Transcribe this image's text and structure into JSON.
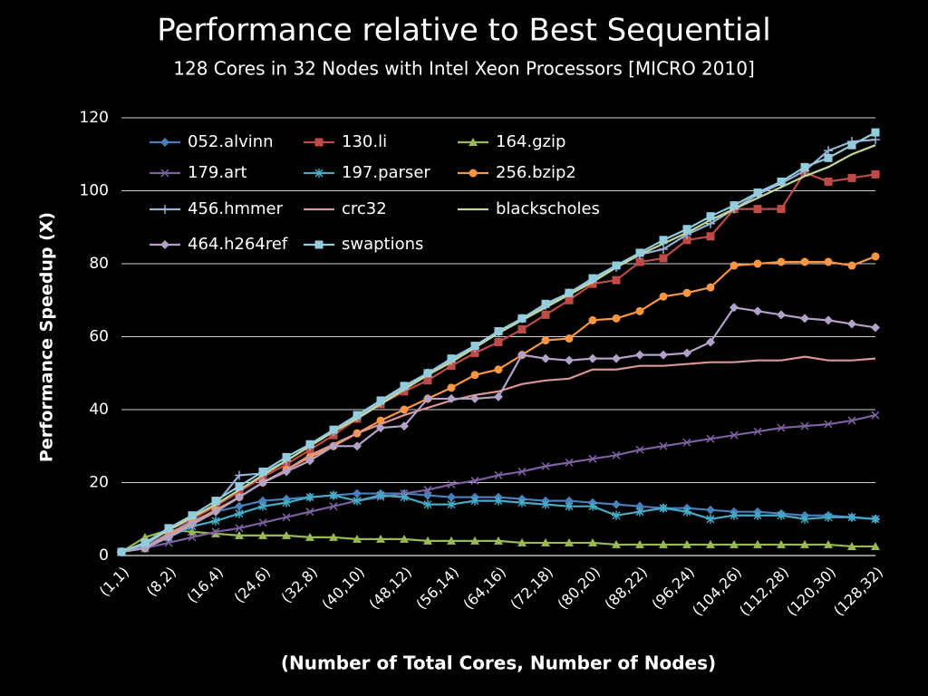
{
  "chart_data": {
    "type": "line",
    "title": "Performance relative to Best Sequential",
    "subtitle": "128 Cores in 32 Nodes with Intel Xeon Processors [MICRO 2010]",
    "x_label": "(Number of Total Cores, Number of Nodes)",
    "y_label": "Performance Speedup (X)",
    "categories": [
      "(1,1)",
      null,
      "(8,2)",
      null,
      "(16,4)",
      null,
      "(24,6)",
      null,
      "(32,8)",
      null,
      "(40,10)",
      null,
      "(48,12)",
      null,
      "(56,14)",
      null,
      "(64,16)",
      null,
      "(72,18)",
      null,
      "(80,20)",
      null,
      "(88,22)",
      null,
      "(96,24)",
      null,
      "(104,26)",
      null,
      "(112,28)",
      null,
      "(120,30)",
      null,
      "(128,32)"
    ],
    "ylim": [
      0,
      120
    ],
    "yticks": [
      0,
      20,
      40,
      60,
      80,
      100,
      120
    ],
    "grid": true,
    "legend": "top-left",
    "series": [
      {
        "name": "052.alvinn",
        "color": "#4a7ebb",
        "marker": "diamond",
        "values": [
          1,
          2.5,
          6,
          9.5,
          12,
          13.5,
          15,
          15.5,
          16,
          16.5,
          17,
          17,
          17,
          16.5,
          16,
          16,
          16,
          15.5,
          15,
          15,
          14.5,
          14,
          13.5,
          13,
          13,
          12.5,
          12,
          12,
          11.5,
          11,
          11,
          10.5,
          10
        ]
      },
      {
        "name": "130.li",
        "color": "#be4b48",
        "marker": "square",
        "values": [
          1,
          3,
          7,
          10,
          13.5,
          17.5,
          21.5,
          25,
          29,
          33,
          37.5,
          41.5,
          45,
          48,
          52,
          55.5,
          58.5,
          62,
          66,
          70,
          74.5,
          75.5,
          80.5,
          81.5,
          86.5,
          87.5,
          95,
          95,
          95,
          105,
          102.5,
          103.5,
          104.5
        ]
      },
      {
        "name": "164.gzip",
        "color": "#98b954",
        "marker": "triangle",
        "values": [
          1,
          5,
          7,
          6.5,
          6,
          5.5,
          5.5,
          5.5,
          5,
          5,
          4.5,
          4.5,
          4.5,
          4,
          4,
          4,
          4,
          3.5,
          3.5,
          3.5,
          3.5,
          3,
          3,
          3,
          3,
          3,
          3,
          3,
          3,
          3,
          3,
          2.5,
          2.5
        ]
      },
      {
        "name": "179.art",
        "color": "#7d60a0",
        "marker": "x",
        "values": [
          1,
          2,
          3.5,
          5,
          6.5,
          7.5,
          9,
          10.5,
          12,
          13.5,
          15,
          16,
          17,
          18,
          19.5,
          20.5,
          22,
          23,
          24.5,
          25.5,
          26.5,
          27.5,
          29,
          30,
          31,
          32,
          33,
          34,
          35,
          35.5,
          36,
          37,
          38.5
        ]
      },
      {
        "name": "197.parser",
        "color": "#46aac5",
        "marker": "star",
        "values": [
          1,
          2,
          5,
          8,
          9.5,
          11.5,
          13.5,
          14.5,
          16,
          16.5,
          15,
          16.5,
          16,
          14,
          14,
          15,
          15,
          14.5,
          14,
          13.5,
          13.5,
          11,
          12,
          13,
          12,
          10,
          11,
          11,
          11,
          10,
          10.5,
          10.5,
          10
        ]
      },
      {
        "name": "256.bzip2",
        "color": "#f79646",
        "marker": "circle",
        "values": [
          1,
          2,
          5.5,
          9,
          12.5,
          16,
          20,
          23.5,
          27,
          30,
          33.5,
          37,
          40,
          43,
          46,
          49.5,
          51,
          55,
          59,
          59.5,
          64.5,
          65,
          67,
          71,
          72,
          73.5,
          79.5,
          80,
          80.5,
          80.5,
          80.5,
          79.5,
          82
        ]
      },
      {
        "name": "456.hmmer",
        "color": "#95b3d7",
        "marker": "plus",
        "values": [
          1,
          3,
          7,
          10.5,
          14,
          22,
          22.5,
          26,
          30,
          34,
          38,
          42,
          46,
          50,
          53.5,
          57,
          61,
          65,
          68.5,
          72,
          75.5,
          79,
          82.5,
          84,
          88,
          91,
          95,
          99,
          102,
          105.5,
          111,
          113.5,
          114
        ]
      },
      {
        "name": "crc32",
        "color": "#d99694",
        "marker": "none",
        "values": [
          1,
          2,
          6,
          9,
          12,
          16,
          20,
          23.5,
          27.5,
          30.5,
          33.5,
          36,
          38.5,
          40.5,
          42.5,
          44,
          45,
          47,
          48,
          48.5,
          51,
          51,
          52,
          52,
          52.5,
          53,
          53,
          53.5,
          53.5,
          54.5,
          53.5,
          53.5,
          54
        ]
      },
      {
        "name": "blackscholes",
        "color": "#c3d69b",
        "marker": "none",
        "values": [
          1,
          3.5,
          7,
          10.5,
          14,
          18,
          22,
          26,
          30,
          34,
          37.5,
          41.5,
          45.5,
          49.5,
          53,
          57,
          61,
          64.5,
          68,
          71.5,
          75,
          79,
          82.5,
          85.5,
          88.5,
          92,
          95,
          98,
          101,
          104,
          106.5,
          110,
          112.5
        ]
      },
      {
        "name": "464.h264ref",
        "color": "#b3a2c7",
        "marker": "diamond",
        "values": [
          1,
          2,
          5,
          8.5,
          12,
          16,
          20,
          23,
          26,
          30,
          30,
          35,
          35.5,
          43,
          43,
          43,
          43.5,
          55,
          54,
          53.5,
          54,
          54,
          55,
          55,
          55.5,
          58.5,
          68,
          67,
          66,
          65,
          64.5,
          63.5,
          62.5
        ]
      },
      {
        "name": "swaptions",
        "color": "#93cddd",
        "marker": "square",
        "values": [
          1,
          3.5,
          7.5,
          11,
          15,
          19,
          23,
          27,
          30.5,
          34.5,
          38.5,
          42.5,
          46.5,
          50,
          54,
          57.5,
          61.5,
          65,
          69,
          72,
          76,
          79.5,
          83,
          86.5,
          89.5,
          93,
          96,
          99.5,
          102.5,
          106.5,
          109,
          112.5,
          116
        ]
      }
    ]
  }
}
